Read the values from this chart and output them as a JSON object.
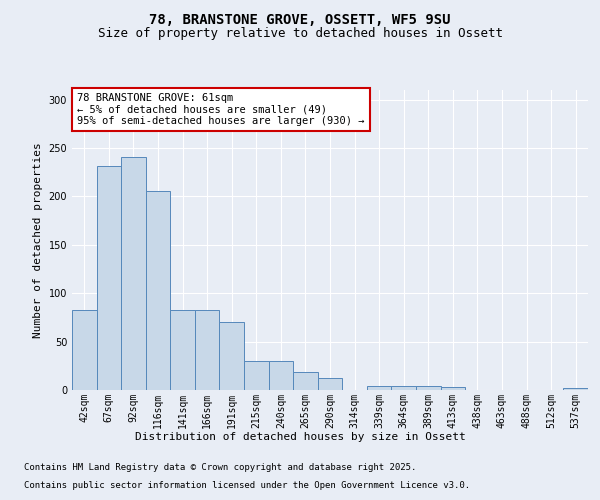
{
  "title_line1": "78, BRANSTONE GROVE, OSSETT, WF5 9SU",
  "title_line2": "Size of property relative to detached houses in Ossett",
  "xlabel": "Distribution of detached houses by size in Ossett",
  "ylabel": "Number of detached properties",
  "categories": [
    "42sqm",
    "67sqm",
    "92sqm",
    "116sqm",
    "141sqm",
    "166sqm",
    "191sqm",
    "215sqm",
    "240sqm",
    "265sqm",
    "290sqm",
    "314sqm",
    "339sqm",
    "364sqm",
    "389sqm",
    "413sqm",
    "438sqm",
    "463sqm",
    "488sqm",
    "512sqm",
    "537sqm"
  ],
  "values": [
    83,
    231,
    241,
    206,
    83,
    83,
    70,
    30,
    30,
    19,
    12,
    0,
    4,
    4,
    4,
    3,
    0,
    0,
    0,
    0,
    2
  ],
  "bar_color": "#c8d8e8",
  "bar_edge_color": "#5588bb",
  "annotation_text": "78 BRANSTONE GROVE: 61sqm\n← 5% of detached houses are smaller (49)\n95% of semi-detached houses are larger (930) →",
  "annotation_box_color": "#ffffff",
  "annotation_box_edge_color": "#cc0000",
  "ylim": [
    0,
    310
  ],
  "yticks": [
    0,
    50,
    100,
    150,
    200,
    250,
    300
  ],
  "footer_line1": "Contains HM Land Registry data © Crown copyright and database right 2025.",
  "footer_line2": "Contains public sector information licensed under the Open Government Licence v3.0.",
  "background_color": "#e8edf5",
  "plot_background_color": "#e8edf5",
  "grid_color": "#ffffff",
  "title_fontsize": 10,
  "subtitle_fontsize": 9,
  "axis_label_fontsize": 8,
  "tick_fontsize": 7,
  "annotation_fontsize": 7.5,
  "footer_fontsize": 6.5
}
